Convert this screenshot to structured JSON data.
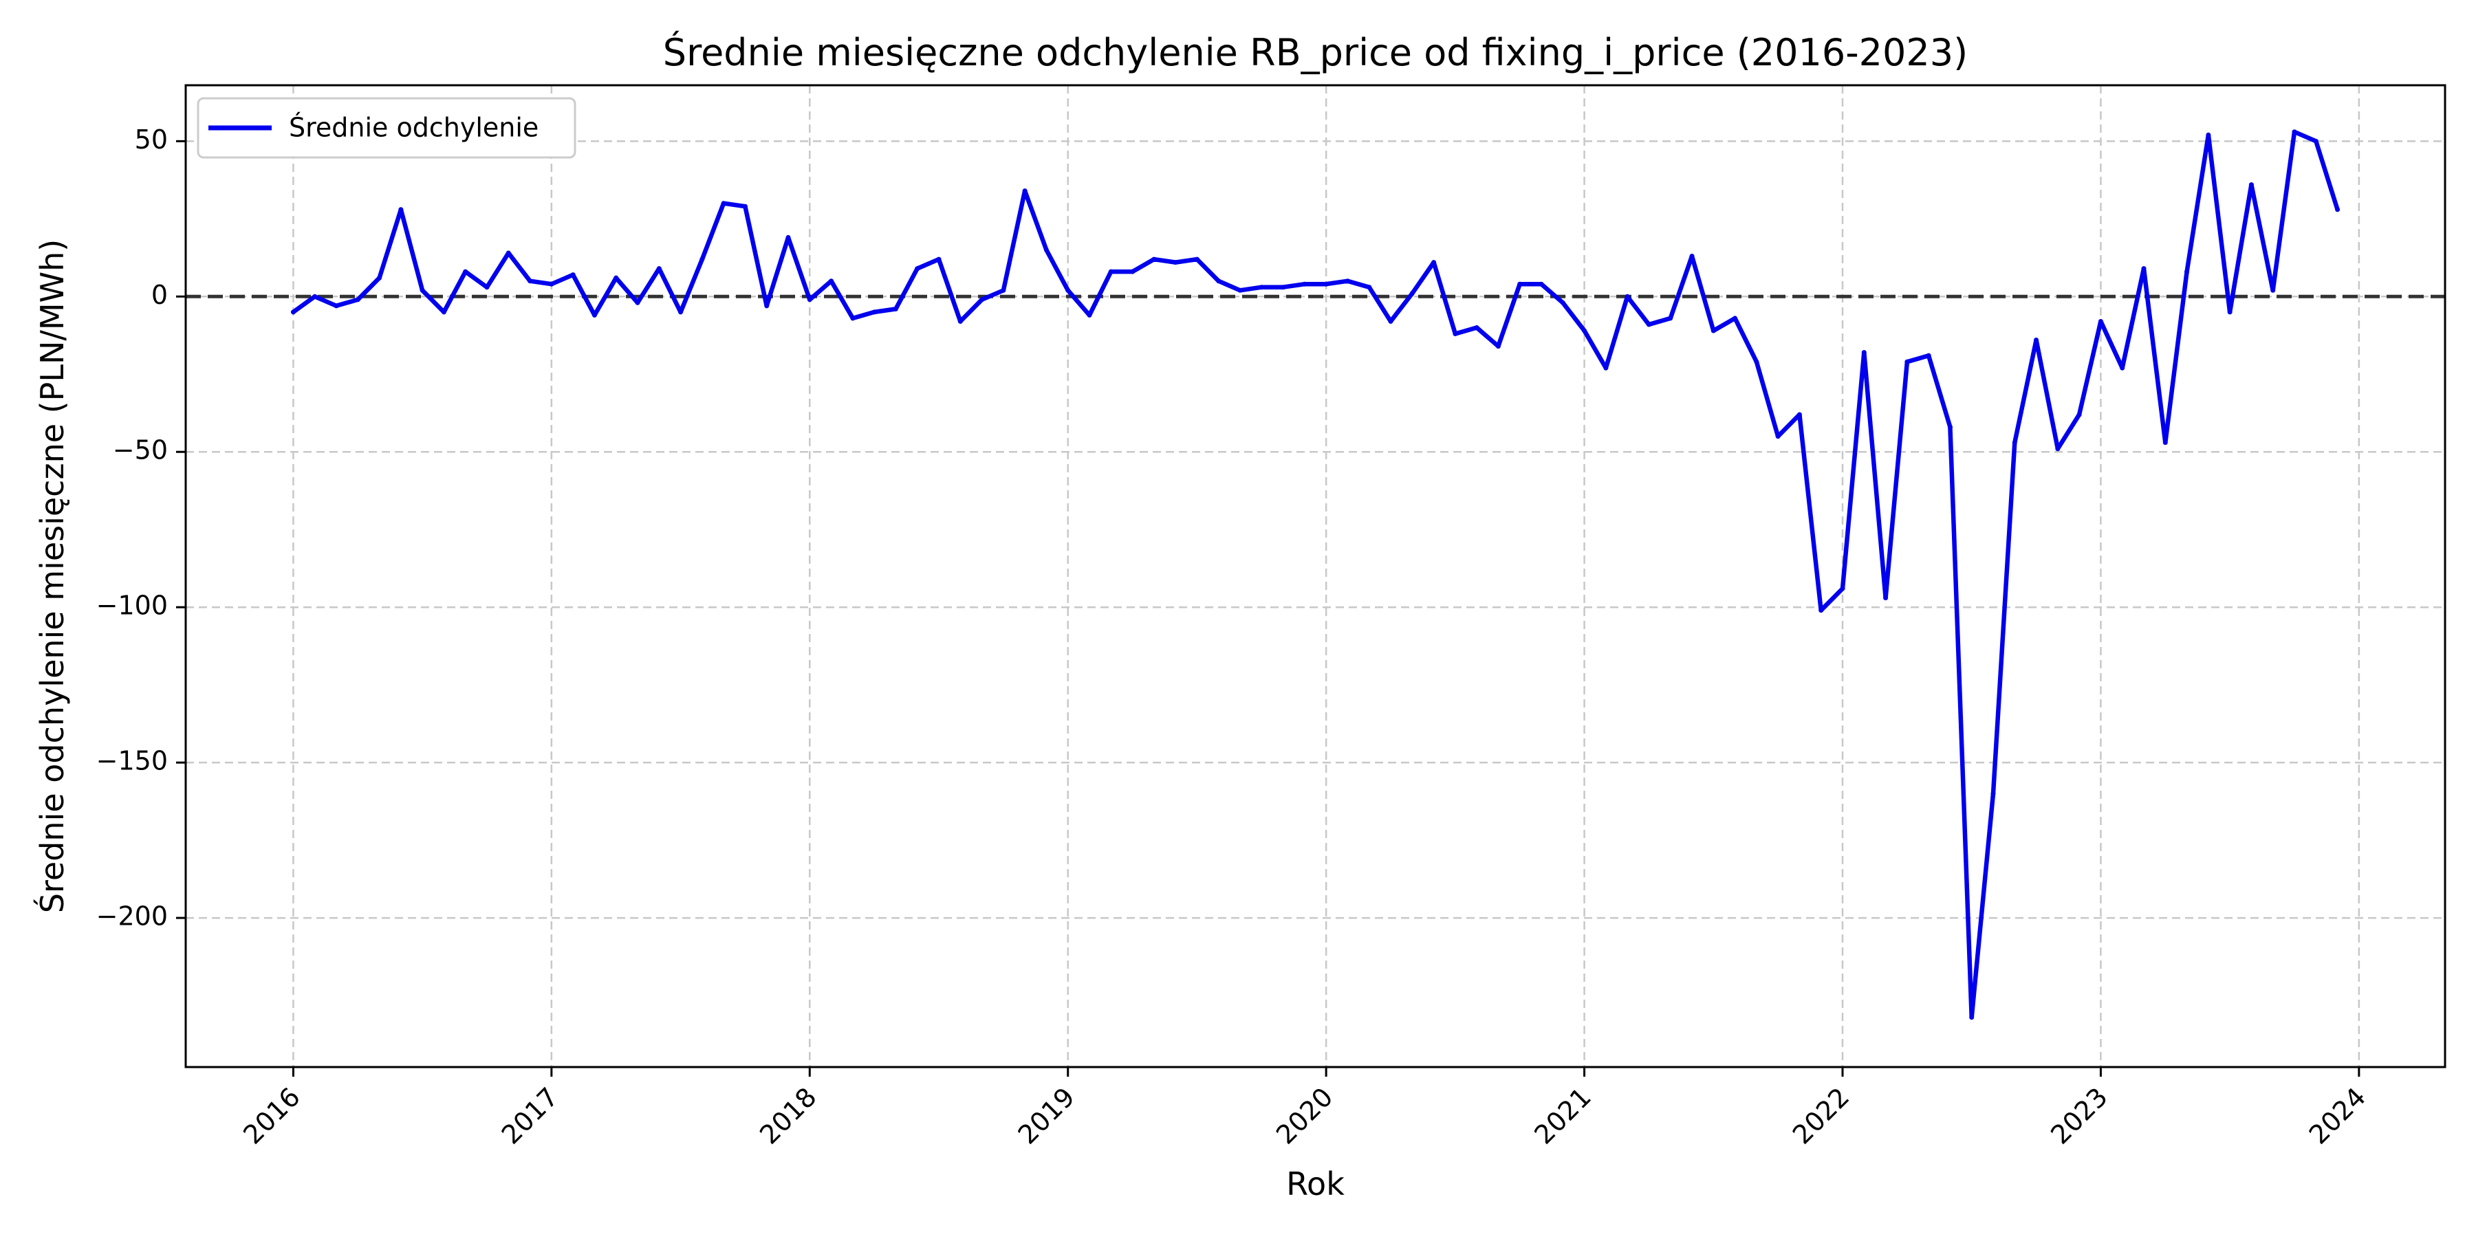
{
  "chart_data": {
    "type": "line",
    "title": "Średnie miesięczne odchylenie RB_price od fixing_i_price (2016-2023)",
    "xlabel": "Rok",
    "ylabel": "Średnie odchylenie miesięczne (PLN/MWh)",
    "xlim": [
      "2015-08",
      "2024-05"
    ],
    "ylim": [
      -248,
      68
    ],
    "x_ticks": [
      "2016",
      "2017",
      "2018",
      "2019",
      "2020",
      "2021",
      "2022",
      "2023",
      "2024"
    ],
    "y_ticks": [
      50,
      0,
      -50,
      -100,
      -150,
      -200
    ],
    "y_tick_labels": [
      "50",
      "0",
      "−50",
      "−100",
      "−150",
      "−200"
    ],
    "grid": true,
    "reference_line": {
      "y": 0,
      "style": "dashed",
      "color": "#333333"
    },
    "legend": {
      "position": "upper-left",
      "entries": [
        "Średnie odchylenie"
      ]
    },
    "series": [
      {
        "name": "Średnie odchylenie",
        "color": "#0000ee",
        "x": [
          "2016-01",
          "2016-02",
          "2016-03",
          "2016-04",
          "2016-05",
          "2016-06",
          "2016-07",
          "2016-08",
          "2016-09",
          "2016-10",
          "2016-11",
          "2016-12",
          "2017-01",
          "2017-02",
          "2017-03",
          "2017-04",
          "2017-05",
          "2017-06",
          "2017-07",
          "2017-08",
          "2017-09",
          "2017-10",
          "2017-11",
          "2017-12",
          "2018-01",
          "2018-02",
          "2018-03",
          "2018-04",
          "2018-05",
          "2018-06",
          "2018-07",
          "2018-08",
          "2018-09",
          "2018-10",
          "2018-11",
          "2018-12",
          "2019-01",
          "2019-02",
          "2019-03",
          "2019-04",
          "2019-05",
          "2019-06",
          "2019-07",
          "2019-08",
          "2019-09",
          "2019-10",
          "2019-11",
          "2019-12",
          "2020-01",
          "2020-02",
          "2020-03",
          "2020-04",
          "2020-05",
          "2020-06",
          "2020-07",
          "2020-08",
          "2020-09",
          "2020-10",
          "2020-11",
          "2020-12",
          "2021-01",
          "2021-02",
          "2021-03",
          "2021-04",
          "2021-05",
          "2021-06",
          "2021-07",
          "2021-08",
          "2021-09",
          "2021-10",
          "2021-11",
          "2021-12",
          "2022-01",
          "2022-02",
          "2022-03",
          "2022-04",
          "2022-05",
          "2022-06",
          "2022-07",
          "2022-08",
          "2022-09",
          "2022-10",
          "2022-11",
          "2022-12",
          "2023-01",
          "2023-02",
          "2023-03",
          "2023-04",
          "2023-05",
          "2023-06",
          "2023-07",
          "2023-08",
          "2023-09",
          "2023-10",
          "2023-11",
          "2023-12"
        ],
        "values": [
          -5,
          0,
          -3,
          -1,
          6,
          28,
          2,
          -5,
          8,
          3,
          14,
          5,
          4,
          7,
          -6,
          6,
          -2,
          9,
          -5,
          12,
          30,
          29,
          -3,
          19,
          -1,
          5,
          -7,
          -5,
          -4,
          9,
          12,
          -8,
          -1,
          2,
          34,
          15,
          2,
          -6,
          8,
          8,
          12,
          11,
          12,
          5,
          2,
          3,
          3,
          4,
          4,
          5,
          3,
          -8,
          1,
          11,
          -12,
          -10,
          -16,
          4,
          4,
          -2,
          -11,
          -23,
          0,
          -9,
          -7,
          13,
          -11,
          -7,
          -21,
          -45,
          -38,
          -101,
          -94,
          -18,
          -97,
          -21,
          -19,
          -42,
          -232,
          -160,
          -47,
          -14,
          -49,
          -38,
          -8,
          -23,
          9,
          -47,
          8,
          52,
          -5,
          36,
          2,
          53,
          50,
          28
        ]
      }
    ]
  }
}
